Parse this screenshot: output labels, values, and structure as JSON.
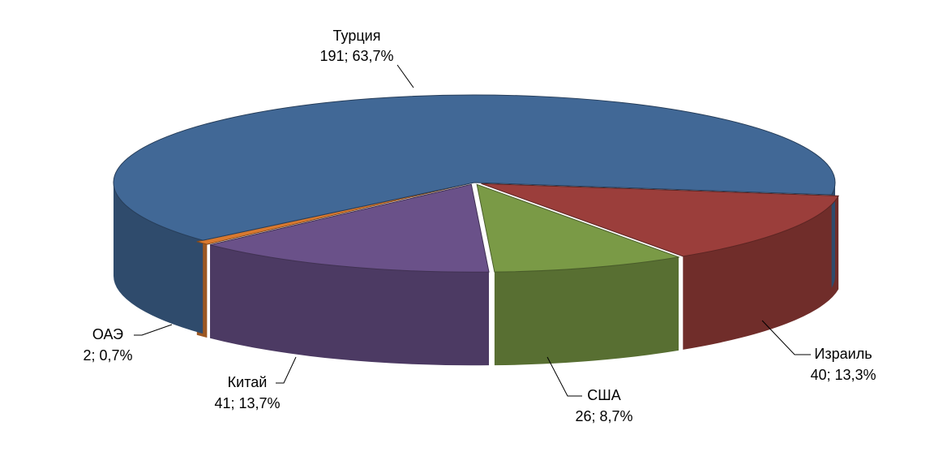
{
  "chart_data": {
    "type": "pie3d",
    "categories": [
      "Израиль",
      "США",
      "Китай",
      "ОАЭ",
      "Турция"
    ],
    "values": [
      40,
      26,
      41,
      2,
      191
    ],
    "value_labels": [
      "40; 13,3%",
      "26; 8,7%",
      "41; 13,7%",
      "2; 0,7%",
      "191; 63,7%"
    ],
    "colors": [
      "#9b3e3b",
      "#7a9a46",
      "#6a5189",
      "#d9792f",
      "#416896"
    ]
  }
}
